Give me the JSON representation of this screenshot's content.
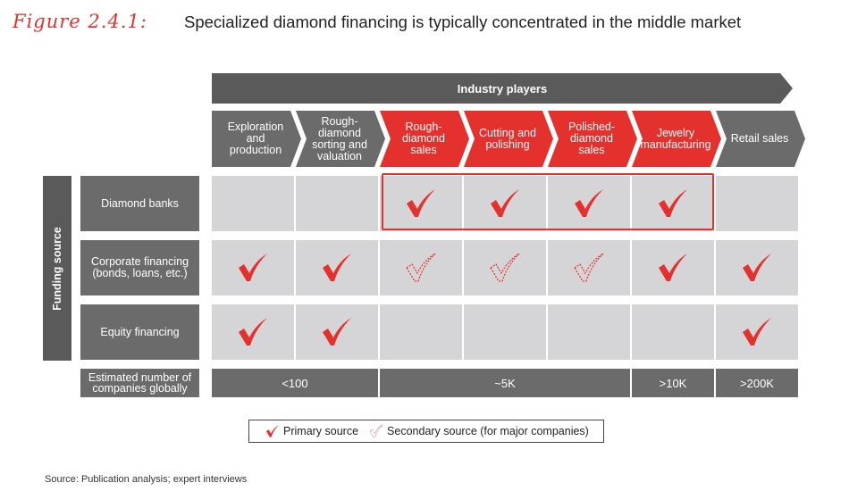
{
  "title": {
    "figure_label": "Figure 2.4.1:",
    "text": "Specialized diamond financing is typically concentrated in the middle market"
  },
  "banner": {
    "label": "Industry players"
  },
  "stages": [
    {
      "label": "Exploration and production",
      "highlighted": false
    },
    {
      "label": "Rough-diamond sorting and valuation",
      "highlighted": false
    },
    {
      "label": "Rough-diamond sales",
      "highlighted": true
    },
    {
      "label": "Cutting and polishing",
      "highlighted": true
    },
    {
      "label": "Polished-diamond sales",
      "highlighted": true
    },
    {
      "label": "Jewelry manufacturing",
      "highlighted": true
    },
    {
      "label": "Retail sales",
      "highlighted": false
    }
  ],
  "funding_axis_label": "Funding source",
  "rows": [
    {
      "label": "Diamond banks",
      "cells": [
        "none",
        "none",
        "primary",
        "primary",
        "primary",
        "primary",
        "none"
      ]
    },
    {
      "label": "Corporate financing (bonds, loans, etc.)",
      "cells": [
        "primary",
        "primary",
        "secondary",
        "secondary",
        "secondary",
        "primary",
        "primary"
      ]
    },
    {
      "label": "Equity financing",
      "cells": [
        "primary",
        "primary",
        "none",
        "none",
        "none",
        "none",
        "primary"
      ]
    }
  ],
  "estimate": {
    "label": "Estimated number of companies globally",
    "groups": [
      {
        "value": "<100",
        "span": 2
      },
      {
        "value": "~5K",
        "span": 3
      },
      {
        "value": ">10K",
        "span": 1
      },
      {
        "value": ">200K",
        "span": 1
      }
    ]
  },
  "legend": {
    "primary": "Primary source",
    "secondary": "Secondary source (for major companies)"
  },
  "source": "Source:  Publication analysis; expert interviews",
  "colors": {
    "red": "#e5312d",
    "dark_gray": "#5a5a5a",
    "mid_gray": "#6b6b6b",
    "cell_gray": "#d5d5d7"
  }
}
